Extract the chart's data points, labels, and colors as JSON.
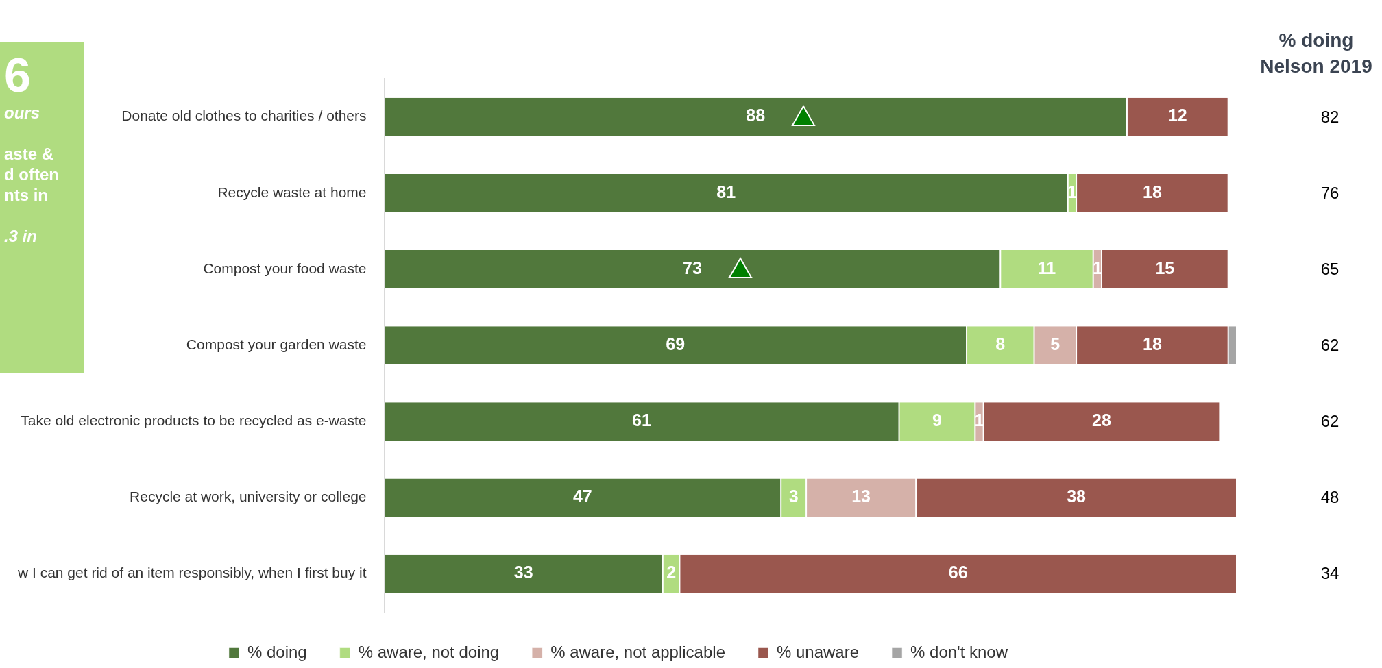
{
  "chart_data": {
    "type": "bar",
    "orientation": "horizontal",
    "stacked": true,
    "tick_labels": "y",
    "legend": "bottom",
    "grid": false,
    "categories": [
      "Donate old clothes to charities / others",
      "Recycle waste at home",
      "Compost your food waste",
      "Compost your garden waste",
      "Take old electronic products to be recycled as e-waste",
      "Recycle at work, university or college",
      "w I can get rid of an item responsibly, when I first buy it"
    ],
    "xlim": [
      0,
      101
    ],
    "series": [
      {
        "name": "% doing",
        "color": "#51783c",
        "values": [
          88,
          81,
          73,
          69,
          61,
          47,
          33
        ],
        "value_labels": [
          "88",
          "81",
          "73",
          "69",
          "61",
          "47",
          "33"
        ]
      },
      {
        "name": "% aware, not doing",
        "color": "#b0dc80",
        "values": [
          null,
          1,
          11,
          8,
          9,
          3,
          2
        ],
        "value_labels": [
          null,
          "1",
          "11",
          "8",
          "9",
          "3",
          "2"
        ]
      },
      {
        "name": "% aware, not applicable",
        "color": "#d5b1a9",
        "values": [
          null,
          null,
          1,
          5,
          1,
          13,
          null
        ],
        "value_labels": [
          null,
          null,
          "1",
          "5",
          "1",
          "13",
          null
        ]
      },
      {
        "name": "% unaware",
        "color": "#9a574e",
        "values": [
          12,
          18,
          15,
          18,
          28,
          38,
          66
        ],
        "value_labels": [
          "12",
          "18",
          "15",
          "18",
          "28",
          "38",
          "66"
        ]
      },
      {
        "name": "% don't know",
        "color": "#a5a5a5",
        "values": [
          null,
          null,
          null,
          1,
          null,
          null,
          null
        ],
        "value_labels": [
          null,
          null,
          null,
          null,
          null,
          null,
          null
        ]
      }
    ],
    "annotations": [
      "% doing Nelson 2019",
      "82",
      "76",
      "65",
      "62",
      "62",
      "48",
      "34",
      "6",
      "ours",
      "aste &",
      "d often",
      "nts in",
      ".3 in"
    ]
  }
}
